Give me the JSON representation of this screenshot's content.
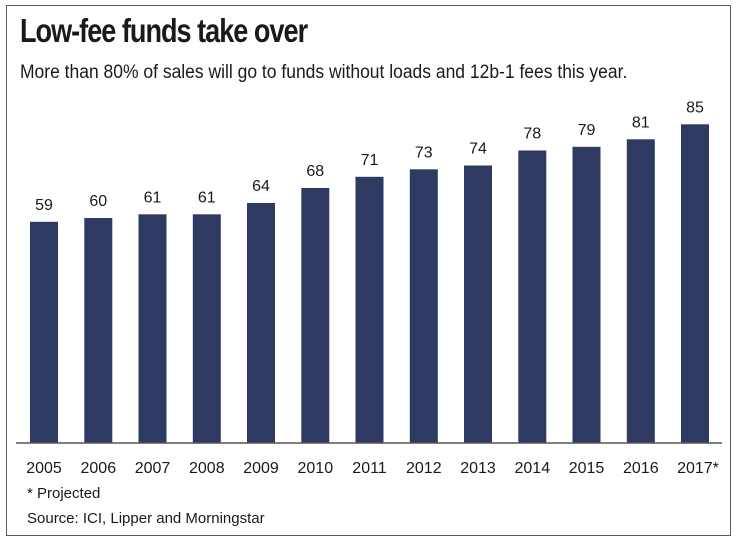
{
  "chart_data": {
    "type": "bar",
    "title": "Low-fee funds take over",
    "subtitle": "More than 80% of sales will go to funds without loads and 12b-1 fees this year.",
    "xlabel": "",
    "ylabel": "",
    "ylim": [
      0,
      85
    ],
    "grid": false,
    "legend": "none",
    "categories": [
      "2005",
      "2006",
      "2007",
      "2008",
      "2009",
      "2010",
      "2011",
      "2012",
      "2013",
      "2014",
      "2015",
      "2016",
      "2017*"
    ],
    "values": [
      59,
      60,
      61,
      61,
      64,
      68,
      71,
      73,
      74,
      78,
      79,
      81,
      85
    ],
    "data_labels": [
      "59",
      "60",
      "61",
      "61",
      "64",
      "68",
      "71",
      "73",
      "74",
      "78",
      "79",
      "81",
      "85"
    ],
    "bar_color": "#2e3a62",
    "annotations": {
      "note": "* Projected",
      "source": "Source: ICI, Lipper and Morningstar"
    }
  }
}
